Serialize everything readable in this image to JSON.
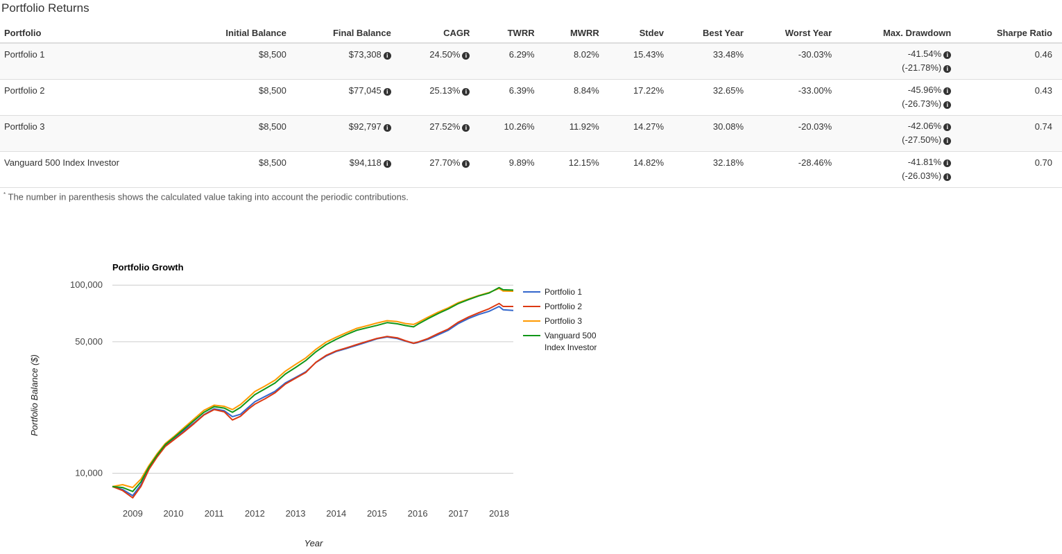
{
  "page_title": "Portfolio Returns",
  "table": {
    "headers": [
      "Portfolio",
      "Initial Balance",
      "Final Balance",
      "CAGR",
      "TWRR",
      "MWRR",
      "Stdev",
      "Best Year",
      "Worst Year",
      "Max. Drawdown",
      "Sharpe Ratio"
    ],
    "rows": [
      {
        "name": "Portfolio 1",
        "initial": "$8,500",
        "final": "$73,308",
        "cagr": "24.50%",
        "twrr": "6.29%",
        "mwrr": "8.02%",
        "stdev": "15.43%",
        "best": "33.48%",
        "worst": "-30.03%",
        "dd": "-41.54%",
        "dd2": "(-21.78%)",
        "sharpe": "0.46"
      },
      {
        "name": "Portfolio 2",
        "initial": "$8,500",
        "final": "$77,045",
        "cagr": "25.13%",
        "twrr": "6.39%",
        "mwrr": "8.84%",
        "stdev": "17.22%",
        "best": "32.65%",
        "worst": "-33.00%",
        "dd": "-45.96%",
        "dd2": "(-26.73%)",
        "sharpe": "0.43"
      },
      {
        "name": "Portfolio 3",
        "initial": "$8,500",
        "final": "$92,797",
        "cagr": "27.52%",
        "twrr": "10.26%",
        "mwrr": "11.92%",
        "stdev": "14.27%",
        "best": "30.08%",
        "worst": "-20.03%",
        "dd": "-42.06%",
        "dd2": "(-27.50%)",
        "sharpe": "0.74"
      },
      {
        "name": "Vanguard 500 Index Investor",
        "initial": "$8,500",
        "final": "$94,118",
        "cagr": "27.70%",
        "twrr": "9.89%",
        "mwrr": "12.15%",
        "stdev": "14.82%",
        "best": "32.18%",
        "worst": "-28.46%",
        "dd": "-41.81%",
        "dd2": "(-26.03%)",
        "sharpe": "0.70"
      }
    ],
    "info_icon": "info-circle-icon"
  },
  "footnote": {
    "marker": "*",
    "text": "The number in parenthesis shows the calculated value taking into account the periodic contributions."
  },
  "chart_data": {
    "type": "line",
    "title": "Portfolio Growth",
    "xlabel": "Year",
    "ylabel": "Portfolio Balance ($)",
    "yscale": "log",
    "ylim": [
      6800,
      110000
    ],
    "xlim": [
      2008.5,
      2018.35
    ],
    "yticks": [
      10000,
      50000,
      100000
    ],
    "ytick_labels": [
      "10,000",
      "50,000",
      "100,000"
    ],
    "xticks": [
      2009,
      2010,
      2011,
      2012,
      2013,
      2014,
      2015,
      2016,
      2017,
      2018
    ],
    "grid": true,
    "legend_position": "right",
    "x": [
      2008.5,
      2008.75,
      2009.0,
      2009.2,
      2009.4,
      2009.6,
      2009.8,
      2010.0,
      2010.25,
      2010.5,
      2010.75,
      2011.0,
      2011.25,
      2011.45,
      2011.65,
      2011.85,
      2012.0,
      2012.25,
      2012.5,
      2012.75,
      2013.0,
      2013.25,
      2013.5,
      2013.75,
      2014.0,
      2014.25,
      2014.5,
      2014.75,
      2015.0,
      2015.25,
      2015.5,
      2015.7,
      2015.9,
      2016.0,
      2016.25,
      2016.5,
      2016.75,
      2017.0,
      2017.25,
      2017.5,
      2017.75,
      2018.0,
      2018.1,
      2018.35
    ],
    "series": [
      {
        "name": "Portfolio 1",
        "color": "#3366cc",
        "values": [
          8500,
          8200,
          7600,
          8700,
          10600,
          12300,
          14000,
          15200,
          16800,
          18500,
          20500,
          22000,
          21500,
          20000,
          20600,
          22500,
          24000,
          25600,
          27300,
          30200,
          32300,
          34600,
          38800,
          42000,
          44400,
          46000,
          47900,
          49800,
          51800,
          53000,
          52000,
          50400,
          49000,
          49500,
          51500,
          54400,
          57500,
          62500,
          66500,
          69800,
          72500,
          77000,
          74000,
          73308
        ]
      },
      {
        "name": "Portfolio 2",
        "color": "#dc3912",
        "values": [
          8500,
          8100,
          7400,
          8500,
          10500,
          12200,
          13900,
          15000,
          16500,
          18300,
          20400,
          21800,
          21200,
          19200,
          20100,
          22000,
          23300,
          24900,
          26800,
          29800,
          32000,
          34300,
          38900,
          42300,
          44700,
          46400,
          48300,
          50200,
          52100,
          53400,
          52500,
          50600,
          49100,
          49800,
          52000,
          55200,
          58400,
          63600,
          67700,
          71300,
          74800,
          79900,
          77000,
          77045
        ]
      },
      {
        "name": "Portfolio 3",
        "color": "#ff9900",
        "values": [
          8500,
          8700,
          8400,
          9300,
          11000,
          12700,
          14400,
          15600,
          17400,
          19400,
          21600,
          23000,
          22700,
          21800,
          23200,
          25400,
          27200,
          29100,
          31300,
          34900,
          37900,
          41000,
          45600,
          49800,
          52900,
          55900,
          58900,
          60800,
          62900,
          64700,
          64000,
          62500,
          61800,
          63200,
          67500,
          71800,
          75700,
          80800,
          84400,
          88100,
          91300,
          96000,
          93000,
          92797
        ]
      },
      {
        "name": "Vanguard 500 Index Investor",
        "color": "#109618",
        "values": [
          8500,
          8400,
          8000,
          9000,
          10800,
          12500,
          14200,
          15400,
          17100,
          19000,
          21100,
          22600,
          22200,
          21100,
          22400,
          24500,
          26200,
          28100,
          30200,
          33700,
          36500,
          39700,
          44200,
          48300,
          51500,
          54600,
          57500,
          59300,
          61100,
          63200,
          62300,
          61000,
          60000,
          61900,
          66300,
          70600,
          74700,
          79800,
          83800,
          87600,
          90700,
          97000,
          94500,
          94118
        ]
      }
    ]
  }
}
